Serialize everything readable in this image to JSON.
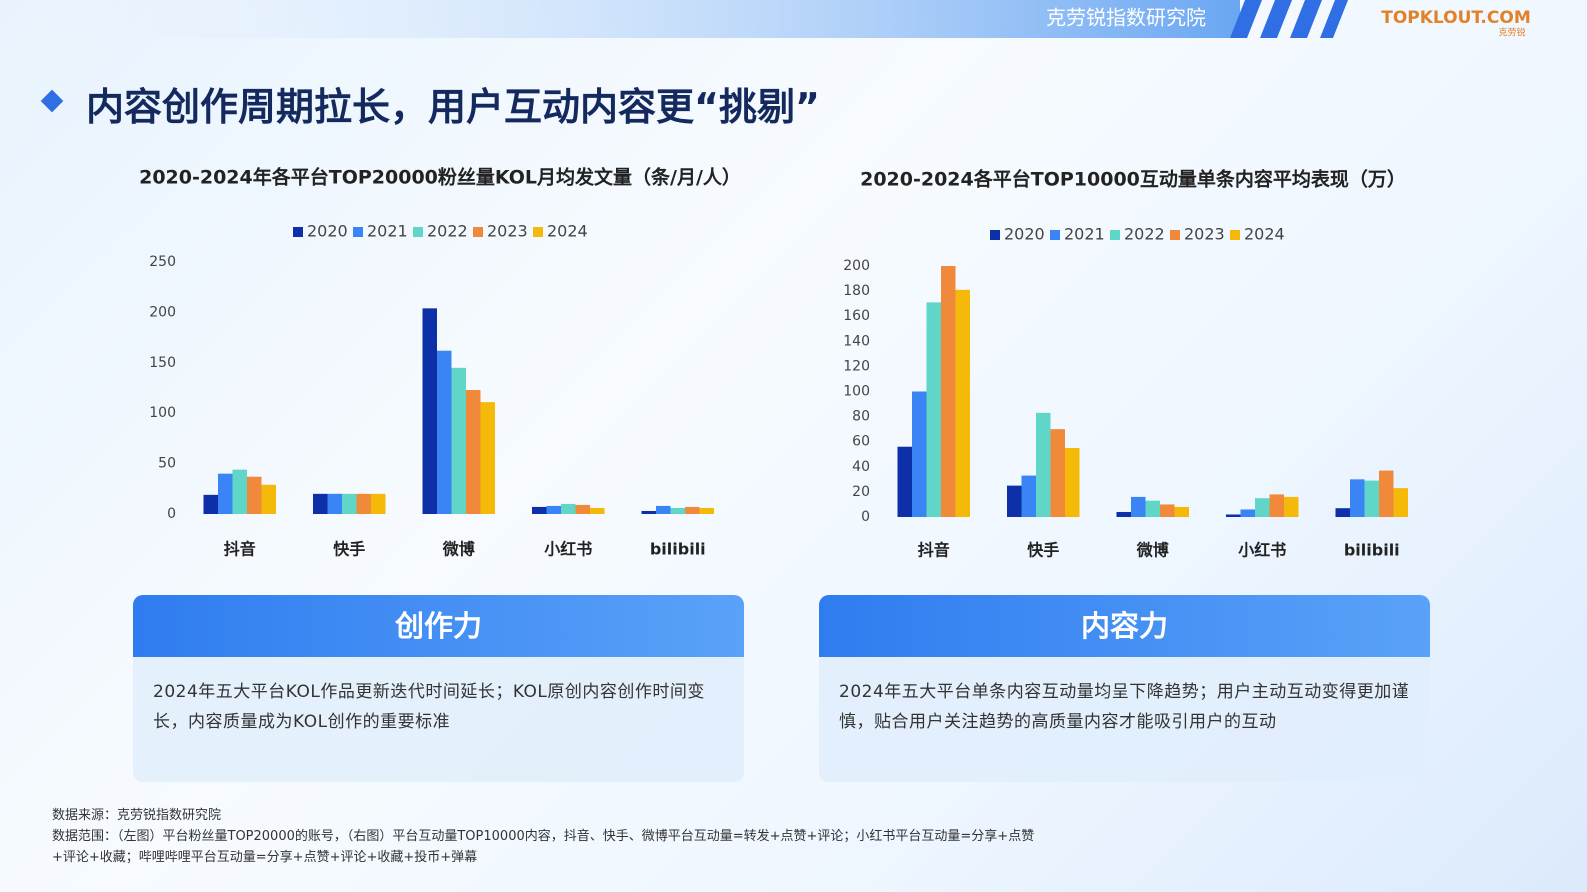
{
  "header": {
    "org": "克劳锐指数研究院",
    "logo": "TOPKLOUT.COM",
    "logo_cn": "克劳锐"
  },
  "title": "内容创作周期拉长，用户互动内容更“挑剔”",
  "chart_data": [
    {
      "type": "bar",
      "title": "2020-2024年各平台TOP20000粉丝量KOL月均发文量（条/月/人）",
      "categories": [
        "抖音",
        "快手",
        "微博",
        "小红书",
        "bilibili"
      ],
      "series": [
        {
          "name": "2020",
          "color": "#0d2fa8",
          "values": [
            19,
            20,
            204,
            7,
            3
          ]
        },
        {
          "name": "2021",
          "color": "#3a84f5",
          "values": [
            40,
            20,
            162,
            8,
            8
          ]
        },
        {
          "name": "2022",
          "color": "#5fd6c8",
          "values": [
            44,
            20,
            145,
            10,
            6
          ]
        },
        {
          "name": "2023",
          "color": "#f08a3a",
          "values": [
            37,
            20,
            123,
            9,
            7
          ]
        },
        {
          "name": "2024",
          "color": "#f5b90a",
          "values": [
            29,
            20,
            111,
            6,
            6
          ]
        }
      ],
      "ylim": [
        0,
        250
      ],
      "yticks": [
        0,
        50,
        100,
        150,
        200,
        250
      ],
      "grid": false,
      "legend": "top"
    },
    {
      "type": "bar",
      "title": "2020-2024各平台TOP10000互动量单条内容平均表现（万）",
      "categories": [
        "抖音",
        "快手",
        "微博",
        "小红书",
        "bilibili"
      ],
      "series": [
        {
          "name": "2020",
          "color": "#0d2fa8",
          "values": [
            56,
            25,
            4,
            2,
            7
          ]
        },
        {
          "name": "2021",
          "color": "#3a84f5",
          "values": [
            100,
            33,
            16,
            6,
            30
          ]
        },
        {
          "name": "2022",
          "color": "#5fd6c8",
          "values": [
            171,
            83,
            13,
            15,
            29
          ]
        },
        {
          "name": "2023",
          "color": "#f08a3a",
          "values": [
            200,
            70,
            10,
            18,
            37
          ]
        },
        {
          "name": "2024",
          "color": "#f5b90a",
          "values": [
            181,
            55,
            8,
            16,
            23
          ]
        }
      ],
      "ylim": [
        0,
        200
      ],
      "yticks": [
        0,
        20,
        40,
        60,
        80,
        100,
        120,
        140,
        160,
        180,
        200
      ],
      "grid": false,
      "legend": "top"
    }
  ],
  "cards": [
    {
      "heading": "创作力",
      "text": "2024年五大平台KOL作品更新迭代时间延长；KOL原创内容创作时间变长，内容质量成为KOL创作的重要标准"
    },
    {
      "heading": "内容力",
      "text": "2024年五大平台单条内容互动量均呈下降趋势；用户主动互动变得更加谨慎，贴合用户关注趋势的高质量内容才能吸引用户的互动"
    }
  ],
  "footer": {
    "source": "数据来源：克劳锐指数研究院",
    "scope": "数据范围：（左图）平台粉丝量TOP20000的账号，（右图）平台互动量TOP10000内容，抖音、快手、微博平台互动量=转发+点赞+评论；小红书平台互动量=分享+点赞+评论+收藏；哔哩哔哩平台互动量=分享+点赞+评论+收藏+投币+弹幕"
  }
}
